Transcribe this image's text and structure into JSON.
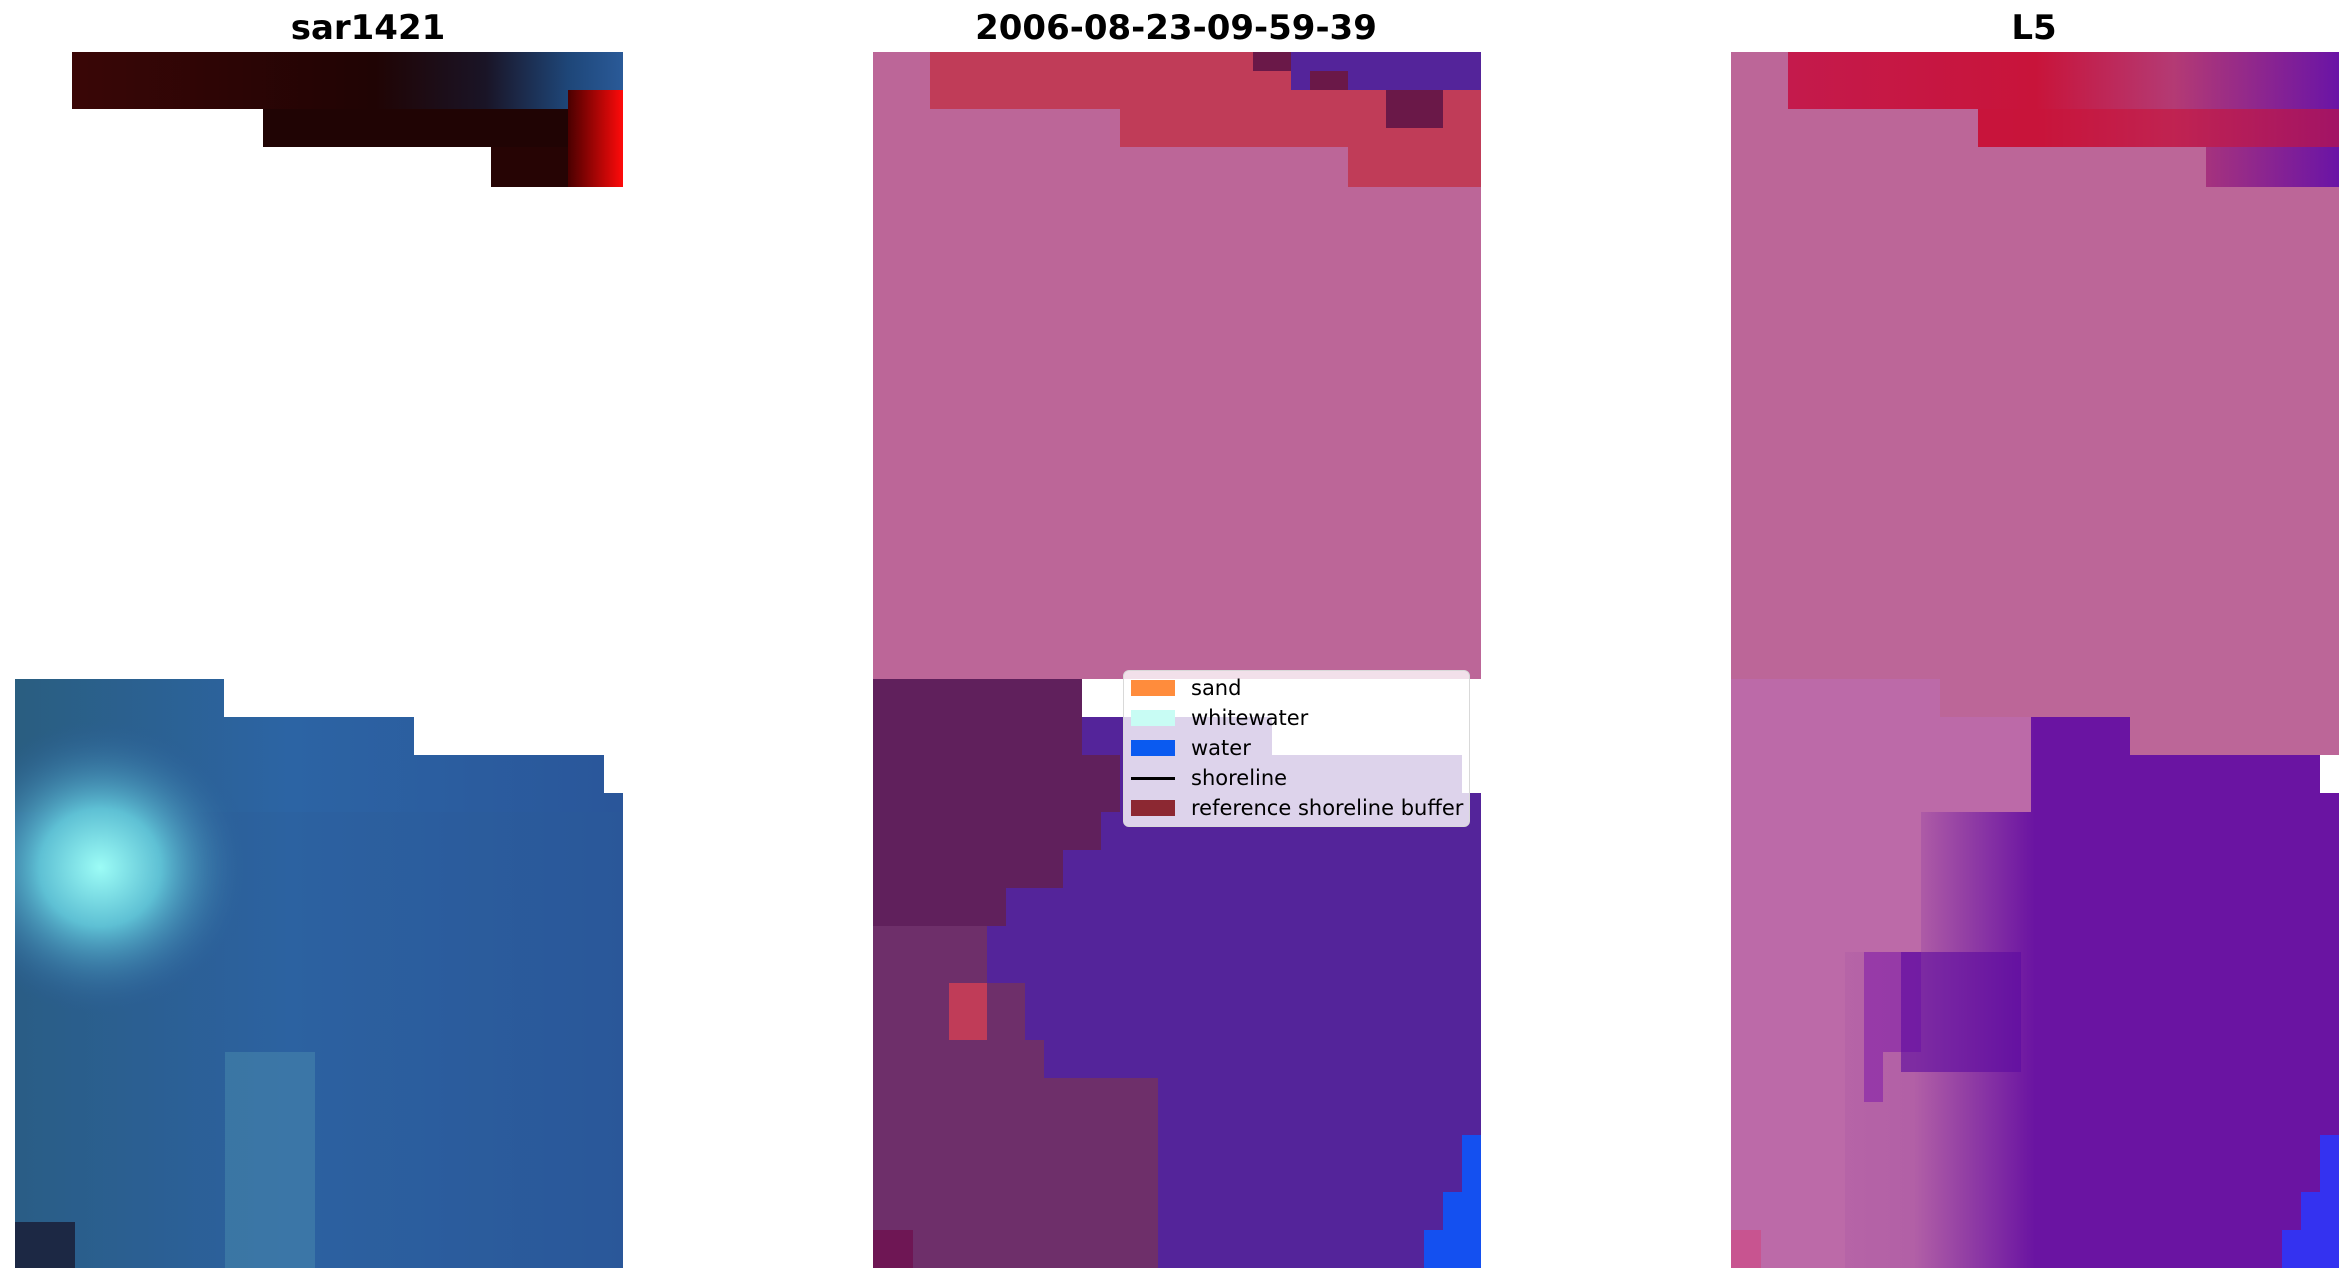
{
  "titles": {
    "left": "sar1421",
    "middle": "2006-08-23-09-59-39",
    "right": "L5"
  },
  "legend": {
    "items": [
      {
        "label": "sand",
        "color": "#ff8c3c",
        "kind": "patch"
      },
      {
        "label": "whitewater",
        "color": "#c8fcf4",
        "kind": "patch"
      },
      {
        "label": "water",
        "color": "#0a5af0",
        "kind": "patch"
      },
      {
        "label": "shoreline",
        "color": "#000000",
        "kind": "line"
      },
      {
        "label": "reference shoreline buffer",
        "color": "#8c2832",
        "kind": "patch"
      }
    ]
  },
  "colors": {
    "background": "#ffffff",
    "left_dark_red": "#2a0606",
    "left_blue": "#2a5a98",
    "left_cyan": "#8cf4f0",
    "middle_pink": "#bc6698",
    "middle_red": "#c03c58",
    "middle_purple": "#54249a",
    "middle_dark_purple": "#60205c",
    "middle_blue": "#1450f0",
    "right_pink": "#bc6698",
    "right_crimson": "#c61a48",
    "right_purple": "#6a14a2",
    "right_blue": "#3432f0"
  }
}
